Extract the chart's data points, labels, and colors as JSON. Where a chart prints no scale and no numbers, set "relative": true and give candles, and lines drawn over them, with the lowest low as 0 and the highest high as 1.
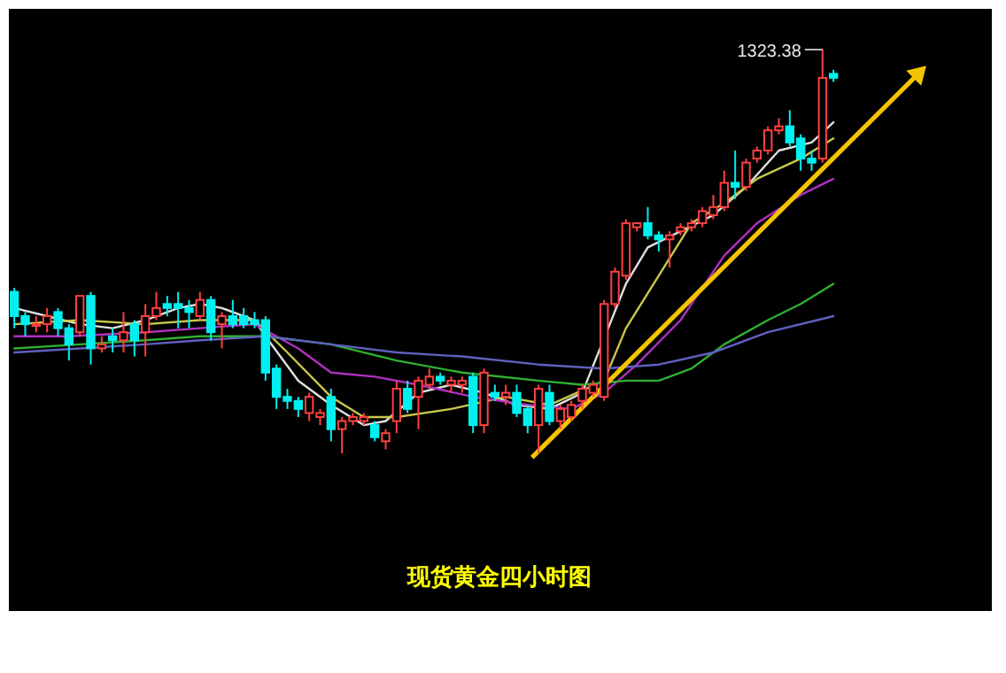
{
  "chart_data": {
    "type": "candlestick",
    "title": "现货黄金四小时图",
    "relative": true,
    "annotations": [
      "1323.38"
    ],
    "categories": [
      null,
      null,
      null,
      null,
      null,
      null,
      null,
      null,
      null,
      null,
      null,
      null,
      null,
      null,
      null,
      null,
      null,
      null,
      null,
      null,
      null,
      null,
      null,
      null,
      null,
      null,
      null,
      null,
      null,
      null,
      null,
      null,
      null,
      null,
      null,
      null,
      null,
      null,
      null,
      null,
      null,
      null,
      null,
      null,
      null,
      null,
      null,
      null,
      null,
      null,
      null,
      null,
      null,
      null,
      null,
      null,
      null,
      null,
      null,
      null,
      null,
      null,
      null,
      null,
      null,
      null,
      null,
      null,
      null,
      null,
      null,
      null,
      null,
      null,
      null,
      null
    ],
    "ohlc": [
      [
        0.4,
        0.41,
        0.31,
        0.34
      ],
      [
        0.34,
        0.35,
        0.29,
        0.32
      ],
      [
        0.32,
        0.34,
        0.3,
        0.32
      ],
      [
        0.32,
        0.36,
        0.3,
        0.34
      ],
      [
        0.35,
        0.36,
        0.29,
        0.31
      ],
      [
        0.31,
        0.32,
        0.23,
        0.27
      ],
      [
        0.3,
        0.39,
        0.29,
        0.39
      ],
      [
        0.39,
        0.4,
        0.22,
        0.26
      ],
      [
        0.26,
        0.29,
        0.25,
        0.27
      ],
      [
        0.29,
        0.31,
        0.25,
        0.28
      ],
      [
        0.28,
        0.35,
        0.25,
        0.3
      ],
      [
        0.32,
        0.33,
        0.24,
        0.28
      ],
      [
        0.3,
        0.37,
        0.24,
        0.34
      ],
      [
        0.34,
        0.4,
        0.33,
        0.36
      ],
      [
        0.37,
        0.39,
        0.34,
        0.36
      ],
      [
        0.37,
        0.4,
        0.31,
        0.36
      ],
      [
        0.36,
        0.38,
        0.31,
        0.35
      ],
      [
        0.34,
        0.4,
        0.33,
        0.38
      ],
      [
        0.38,
        0.39,
        0.28,
        0.3
      ],
      [
        0.32,
        0.35,
        0.26,
        0.34
      ],
      [
        0.34,
        0.38,
        0.31,
        0.32
      ],
      [
        0.34,
        0.36,
        0.31,
        0.32
      ],
      [
        0.33,
        0.35,
        0.31,
        0.32
      ],
      [
        0.33,
        0.34,
        0.18,
        0.2
      ],
      [
        0.21,
        0.22,
        0.11,
        0.14
      ],
      [
        0.14,
        0.16,
        0.11,
        0.13
      ],
      [
        0.13,
        0.14,
        0.09,
        0.11
      ],
      [
        0.1,
        0.15,
        0.08,
        0.14
      ],
      [
        0.09,
        0.11,
        0.07,
        0.1
      ],
      [
        0.14,
        0.16,
        0.03,
        0.06
      ],
      [
        0.06,
        0.09,
        0.0,
        0.08
      ],
      [
        0.08,
        0.1,
        0.07,
        0.09
      ],
      [
        0.08,
        0.1,
        0.07,
        0.09
      ],
      [
        0.07,
        0.08,
        0.03,
        0.04
      ],
      [
        0.03,
        0.06,
        0.01,
        0.05
      ],
      [
        0.08,
        0.18,
        0.05,
        0.16
      ],
      [
        0.16,
        0.18,
        0.1,
        0.11
      ],
      [
        0.14,
        0.19,
        0.06,
        0.18
      ],
      [
        0.17,
        0.21,
        0.16,
        0.19
      ],
      [
        0.19,
        0.2,
        0.17,
        0.18
      ],
      [
        0.17,
        0.19,
        0.15,
        0.18
      ],
      [
        0.17,
        0.19,
        0.15,
        0.18
      ],
      [
        0.19,
        0.2,
        0.05,
        0.07
      ],
      [
        0.07,
        0.21,
        0.05,
        0.2
      ],
      [
        0.15,
        0.17,
        0.13,
        0.14
      ],
      [
        0.14,
        0.17,
        0.12,
        0.15
      ],
      [
        0.15,
        0.17,
        0.09,
        0.1
      ],
      [
        0.11,
        0.12,
        0.05,
        0.07
      ],
      [
        0.07,
        0.17,
        0,
        0.16
      ],
      [
        0.15,
        0.17,
        0.07,
        0.08
      ],
      [
        0.08,
        0.12,
        0.06,
        0.11
      ],
      [
        0.09,
        0.13,
        0.08,
        0.12
      ],
      [
        0.13,
        0.17,
        0.11,
        0.16
      ],
      [
        0.15,
        0.18,
        0.14,
        0.17
      ],
      [
        0.14,
        0.38,
        0.13,
        0.37
      ],
      [
        0.37,
        0.46,
        0.36,
        0.45
      ],
      [
        0.44,
        0.58,
        0.43,
        0.57
      ],
      [
        0.56,
        0.57,
        0.55,
        0.57
      ],
      [
        0.57,
        0.61,
        0.53,
        0.54
      ],
      [
        0.54,
        0.55,
        0.5,
        0.53
      ],
      [
        0.53,
        0.55,
        0.46,
        0.54
      ],
      [
        0.55,
        0.57,
        0.54,
        0.56
      ],
      [
        0.56,
        0.58,
        0.55,
        0.57
      ],
      [
        0.57,
        0.61,
        0.56,
        0.6
      ],
      [
        0.59,
        0.64,
        0.58,
        0.61
      ],
      [
        0.61,
        0.7,
        0.6,
        0.67
      ],
      [
        0.67,
        0.75,
        0.63,
        0.66
      ],
      [
        0.66,
        0.73,
        0.65,
        0.72
      ],
      [
        0.73,
        0.76,
        0.72,
        0.75
      ],
      [
        0.75,
        0.81,
        0.74,
        0.8
      ],
      [
        0.8,
        0.83,
        0.79,
        0.81
      ],
      [
        0.81,
        0.85,
        0.76,
        0.77
      ],
      [
        0.78,
        0.79,
        0.7,
        0.73
      ],
      [
        0.73,
        0.75,
        0.7,
        0.72
      ],
      [
        0.73,
        1,
        0.72,
        0.93
      ],
      [
        0.94,
        0.95,
        0.92,
        0.93
      ]
    ],
    "series": [
      {
        "type": "line",
        "color": "#e0e0e0",
        "values": [
          0.36,
          null,
          null,
          0.34,
          null,
          null,
          0.32,
          null,
          null,
          0.31,
          null,
          null,
          0.33,
          null,
          null,
          0.36,
          null,
          0.37,
          null,
          0.36,
          null,
          null,
          0.33,
          0.29,
          null,
          null,
          0.18,
          null,
          null,
          0.12,
          null,
          null,
          0.07,
          null,
          0.08,
          null,
          null,
          0.15,
          null,
          null,
          0.17,
          null,
          null,
          0.15,
          null,
          null,
          0.12,
          null,
          null,
          0.11,
          null,
          null,
          0.15,
          null,
          null,
          null,
          0.42,
          null,
          0.51,
          null,
          null,
          0.55,
          null,
          null,
          0.59,
          null,
          null,
          0.66,
          null,
          null,
          0.75,
          null,
          null,
          0.77,
          null,
          0.82
        ]
      },
      {
        "type": "line",
        "color": "#c8c84a",
        "values": [
          0.32,
          null,
          null,
          null,
          null,
          null,
          0.33,
          null,
          null,
          null,
          null,
          null,
          0.32,
          null,
          null,
          null,
          null,
          0.33,
          null,
          null,
          null,
          null,
          0.33,
          null,
          null,
          0.25,
          null,
          null,
          null,
          0.14,
          null,
          null,
          0.09,
          null,
          null,
          0.09,
          null,
          null,
          null,
          null,
          0.11,
          null,
          null,
          null,
          null,
          0.14,
          null,
          null,
          null,
          0.12,
          null,
          null,
          null,
          null,
          0.18,
          null,
          0.31,
          null,
          null,
          0.44,
          null,
          null,
          0.57,
          null,
          null,
          0.62,
          null,
          null,
          0.68,
          null,
          null,
          null,
          0.73,
          null,
          null,
          0.78
        ]
      },
      {
        "type": "line",
        "color": "#b030c0",
        "values": [
          0.29,
          null,
          null,
          null,
          null,
          0.29,
          null,
          null,
          null,
          null,
          null,
          null,
          0.3,
          null,
          null,
          null,
          null,
          0.31,
          null,
          null,
          null,
          null,
          0.32,
          null,
          null,
          null,
          0.26,
          null,
          null,
          0.2,
          null,
          null,
          null,
          0.19,
          null,
          null,
          null,
          0.17,
          null,
          null,
          null,
          null,
          0.14,
          null,
          null,
          null,
          null,
          0.12,
          null,
          null,
          null,
          0.11,
          null,
          null,
          0.15,
          null,
          null,
          0.22,
          null,
          null,
          null,
          0.33,
          null,
          null,
          null,
          0.49,
          null,
          null,
          0.57,
          null,
          null,
          null,
          0.64,
          null,
          null,
          0.68
        ]
      },
      {
        "type": "line",
        "color": "#30b030",
        "values": [
          0.26,
          null,
          null,
          null,
          null,
          null,
          0.27,
          null,
          null,
          null,
          null,
          null,
          0.28,
          null,
          null,
          null,
          null,
          0.29,
          null,
          null,
          null,
          null,
          null,
          0.29,
          null,
          null,
          null,
          null,
          null,
          0.27,
          null,
          null,
          null,
          null,
          null,
          0.23,
          null,
          null,
          null,
          null,
          null,
          0.2,
          null,
          null,
          null,
          null,
          null,
          null,
          0.18,
          null,
          null,
          null,
          0.17,
          null,
          null,
          null,
          0.18,
          null,
          null,
          0.18,
          null,
          null,
          0.21,
          null,
          null,
          0.27,
          null,
          null,
          null,
          0.33,
          null,
          null,
          0.37,
          null,
          null,
          0.42
        ]
      },
      {
        "type": "line",
        "color": "#6060c0",
        "values": [
          0.25,
          null,
          null,
          null,
          null,
          null,
          0.26,
          null,
          null,
          null,
          null,
          null,
          0.27,
          null,
          null,
          null,
          null,
          0.28,
          null,
          null,
          null,
          null,
          null,
          0.29,
          null,
          null,
          null,
          null,
          null,
          0.27,
          null,
          null,
          null,
          null,
          null,
          0.25,
          null,
          null,
          null,
          null,
          null,
          0.24,
          null,
          null,
          null,
          null,
          null,
          null,
          0.22,
          null,
          null,
          null,
          null,
          null,
          0.21,
          null,
          null,
          null,
          null,
          0.22,
          null,
          null,
          null,
          null,
          0.25,
          null,
          null,
          null,
          null,
          0.3,
          null,
          null,
          null,
          null,
          null,
          0.34
        ]
      }
    ]
  }
}
